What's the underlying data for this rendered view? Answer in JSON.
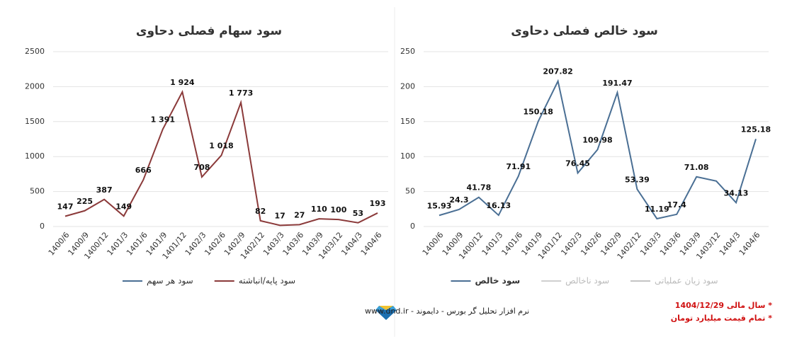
{
  "chart_data": [
    {
      "type": "line",
      "title": "سود سهام فصلی دحاوی",
      "categories": [
        "1400/6",
        "1400/9",
        "1400/12",
        "1401/3",
        "1401/6",
        "1401/9",
        "1401/12",
        "1402/3",
        "1402/6",
        "1402/9",
        "1402/12",
        "1403/3",
        "1403/6",
        "1403/9",
        "1403/12",
        "1404/3",
        "1404/6"
      ],
      "series": [
        {
          "name": "سود هر سهم",
          "color": "#4a6f94",
          "values": [
            null,
            null,
            null,
            null,
            null,
            null,
            null,
            null,
            null,
            null,
            null,
            null,
            null,
            null,
            null,
            null,
            null
          ]
        },
        {
          "name": "سود پایه/انباشته",
          "color": "#8b3a3a",
          "values": [
            147,
            225,
            387,
            149,
            666,
            1391,
            1924,
            708,
            1018,
            1773,
            82,
            17,
            27,
            110,
            100,
            53,
            193
          ],
          "value_labels": [
            "147",
            "225",
            "387",
            "149",
            "666",
            "1 391",
            "1 924",
            "708",
            "1 018",
            "1 773",
            "82",
            "17",
            "27",
            "110",
            "100",
            "53",
            "193"
          ]
        }
      ],
      "ylim": [
        0,
        2500
      ],
      "yticks": [
        0,
        500,
        1000,
        1500,
        2000,
        2500
      ],
      "grid": true
    },
    {
      "type": "line",
      "title": "سود خالص فصلی دحاوی",
      "categories": [
        "1400/6",
        "1400/9",
        "1400/12",
        "1401/3",
        "1401/6",
        "1401/9",
        "1401/12",
        "1402/3",
        "1402/6",
        "1402/9",
        "1402/12",
        "1403/3",
        "1403/6",
        "1403/9",
        "1403/12",
        "1404/3",
        "1404/6"
      ],
      "series": [
        {
          "name": "سود خالص",
          "color": "#4a6f94",
          "values": [
            15.93,
            24.3,
            41.78,
            16.13,
            71.91,
            150.18,
            207.82,
            76.45,
            109.98,
            191.47,
            53.39,
            11.19,
            17.4,
            71.08,
            65,
            34.13,
            125.18
          ],
          "value_labels": [
            "15.93",
            "24.3",
            "41.78",
            "16.13",
            "71.91",
            "150.18",
            "207.82",
            "76.45",
            "109.98",
            "191.47",
            "53.39",
            "11.19",
            "17.4",
            "71.08",
            null,
            "34.13",
            "125.18"
          ]
        },
        {
          "name": "سود ناخالص",
          "color": "#cfcfcf",
          "values": [
            null,
            null,
            null,
            null,
            null,
            null,
            null,
            null,
            null,
            null,
            null,
            null,
            null,
            null,
            null,
            null,
            null
          ]
        },
        {
          "name": "سود زیان عملیاتی",
          "color": "#c4c4c4",
          "values": [
            null,
            null,
            null,
            null,
            null,
            null,
            null,
            null,
            null,
            null,
            null,
            null,
            null,
            null,
            null,
            null,
            null
          ]
        }
      ],
      "ylim": [
        0,
        250
      ],
      "yticks": [
        0,
        50,
        100,
        150,
        200,
        250
      ],
      "grid": true
    }
  ],
  "footer": {
    "credit": "نرم افزار تحلیل گر بورس - دایموند - www.dnd.ir",
    "notes": [
      "* سال مالی 1404/12/29",
      "* تمام قیمت میلیارد تومان"
    ]
  }
}
